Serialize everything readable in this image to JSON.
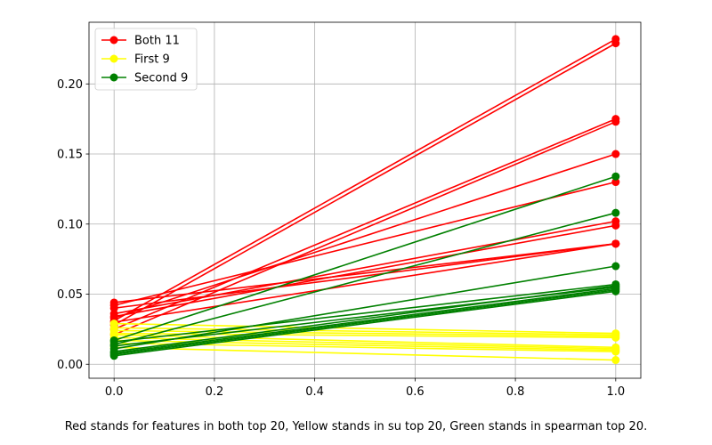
{
  "caption": "Red stands for features in both top 20, Yellow stands in su top 20, Green stands in spearman top 20.",
  "chart_data": {
    "type": "line",
    "title": "",
    "xlabel": "",
    "ylabel": "",
    "xlim": [
      -0.05,
      1.05
    ],
    "ylim": [
      -0.01,
      0.244
    ],
    "xticks": [
      0.0,
      0.2,
      0.4,
      0.6,
      0.8,
      1.0
    ],
    "xtick_labels": [
      "0.0",
      "0.2",
      "0.4",
      "0.6",
      "0.8",
      "1.0"
    ],
    "yticks": [
      0.0,
      0.05,
      0.1,
      0.15,
      0.2
    ],
    "ytick_labels": [
      "0.00",
      "0.05",
      "0.10",
      "0.15",
      "0.20"
    ],
    "grid": true,
    "legend": {
      "position": "top-left",
      "entries": [
        {
          "label": "Both 11",
          "color": "#ff0000"
        },
        {
          "label": "First 9",
          "color": "#ffff00"
        },
        {
          "label": "Second 9",
          "color": "#008000"
        }
      ]
    },
    "groups": [
      {
        "color": "#ff0000",
        "lines": [
          [
            [
              0,
              0.031
            ],
            [
              1,
              0.232
            ]
          ],
          [
            [
              0,
              0.028
            ],
            [
              1,
              0.229
            ]
          ],
          [
            [
              0,
              0.025
            ],
            [
              1,
              0.175
            ]
          ],
          [
            [
              0,
              0.021
            ],
            [
              1,
              0.173
            ]
          ],
          [
            [
              0,
              0.033
            ],
            [
              1,
              0.15
            ]
          ],
          [
            [
              0,
              0.042
            ],
            [
              1,
              0.13
            ]
          ],
          [
            [
              0,
              0.036
            ],
            [
              1,
              0.102
            ]
          ],
          [
            [
              0,
              0.034
            ],
            [
              1,
              0.099
            ]
          ],
          [
            [
              0,
              0.044
            ],
            [
              1,
              0.086
            ]
          ],
          [
            [
              0,
              0.04
            ],
            [
              1,
              0.086
            ]
          ],
          [
            [
              0,
              0.03
            ],
            [
              1,
              0.086
            ]
          ]
        ]
      },
      {
        "color": "#ffff00",
        "lines": [
          [
            [
              0,
              0.029
            ],
            [
              1,
              0.022
            ]
          ],
          [
            [
              0,
              0.026
            ],
            [
              1,
              0.021
            ]
          ],
          [
            [
              0,
              0.024
            ],
            [
              1,
              0.02
            ]
          ],
          [
            [
              0,
              0.022
            ],
            [
              1,
              0.019
            ]
          ],
          [
            [
              0,
              0.021
            ],
            [
              1,
              0.012
            ]
          ],
          [
            [
              0,
              0.019
            ],
            [
              1,
              0.011
            ]
          ],
          [
            [
              0,
              0.017
            ],
            [
              1,
              0.01
            ]
          ],
          [
            [
              0,
              0.015
            ],
            [
              1,
              0.009
            ]
          ],
          [
            [
              0,
              0.012
            ],
            [
              1,
              0.003
            ]
          ]
        ]
      },
      {
        "color": "#008000",
        "lines": [
          [
            [
              0,
              0.017
            ],
            [
              1,
              0.134
            ]
          ],
          [
            [
              0,
              0.014
            ],
            [
              1,
              0.108
            ]
          ],
          [
            [
              0,
              0.011
            ],
            [
              1,
              0.07
            ]
          ],
          [
            [
              0,
              0.016
            ],
            [
              1,
              0.057
            ]
          ],
          [
            [
              0,
              0.009
            ],
            [
              1,
              0.056
            ]
          ],
          [
            [
              0,
              0.013
            ],
            [
              1,
              0.055
            ]
          ],
          [
            [
              0,
              0.008
            ],
            [
              1,
              0.054
            ]
          ],
          [
            [
              0,
              0.007
            ],
            [
              1,
              0.053
            ]
          ],
          [
            [
              0,
              0.006
            ],
            [
              1,
              0.052
            ]
          ]
        ]
      }
    ]
  }
}
